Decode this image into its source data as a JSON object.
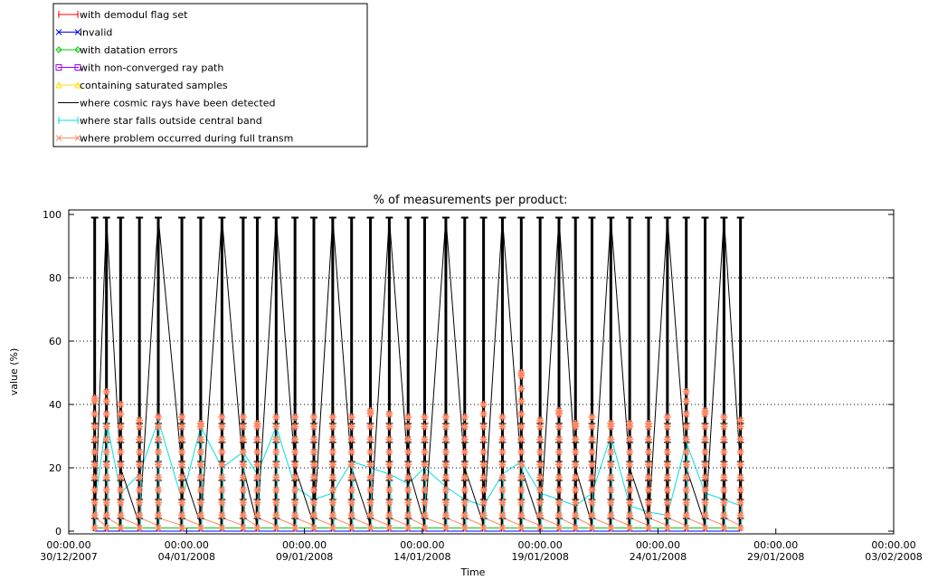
{
  "chart_data": {
    "type": "line",
    "title": "% of measurements per product:",
    "xlabel": "Time",
    "ylabel": "value (%)",
    "ylim": [
      0,
      100
    ],
    "yticks": [
      "0",
      "20",
      "40",
      "60",
      "80",
      "100"
    ],
    "x_range": [
      "30/12/2007",
      "03/02/2008"
    ],
    "xticks": [
      {
        "time": "00:00.00",
        "date": "30/12/2007"
      },
      {
        "time": "00:00.00",
        "date": "04/01/2008"
      },
      {
        "time": "00:00.00",
        "date": "09/01/2008"
      },
      {
        "time": "00:00.00",
        "date": "14/01/2008"
      },
      {
        "time": "00:00.00",
        "date": "19/01/2008"
      },
      {
        "time": "00:00.00",
        "date": "24/01/2008"
      },
      {
        "time": "00:00.00",
        "date": "29/01/2008"
      },
      {
        "time": "00:00.00",
        "date": "03/02/2008"
      }
    ],
    "grid": "horizontal dotted",
    "legend_position": "top-left, outside plot",
    "series": [
      {
        "name": "with demodul flag set",
        "color": "#ff0000",
        "marker": "plus"
      },
      {
        "name": "invalid",
        "color": "#0000ff",
        "marker": "x"
      },
      {
        "name": "with datation errors",
        "color": "#00cc00",
        "marker": "diamond"
      },
      {
        "name": "with non-converged ray path",
        "color": "#aa00ff",
        "marker": "square"
      },
      {
        "name": "containing saturated samples",
        "color": "#ffdd00",
        "marker": "triangle"
      },
      {
        "name": "where cosmic rays have been detected",
        "color": "#000000",
        "marker": "none"
      },
      {
        "name": "where star falls outside central band",
        "color": "#00e0e0",
        "marker": "bar"
      },
      {
        "name": "where problem occurred during full transm",
        "color": "#ff8866",
        "marker": "asterisk"
      }
    ],
    "orbit_days": [
      1.1,
      1.6,
      2.2,
      3.0,
      3.8,
      4.8,
      5.6,
      6.5,
      7.4,
      8.0,
      8.8,
      9.6,
      10.4,
      11.2,
      12.0,
      12.8,
      13.6,
      14.4,
      15.1,
      16.0,
      16.8,
      17.6,
      18.4,
      19.2,
      20.0,
      20.8,
      21.5,
      22.2,
      23.0,
      23.8,
      24.6,
      25.4,
      26.2,
      27.0,
      27.8,
      28.5
    ],
    "cosmic_peak": 99,
    "star_band_values": [
      8,
      35,
      12,
      18,
      35,
      10,
      33,
      20,
      25,
      18,
      33,
      14,
      10,
      12,
      22,
      20,
      18,
      15,
      20,
      14,
      10,
      8,
      18,
      22,
      12,
      10,
      8,
      12,
      30,
      8,
      6,
      5,
      28,
      12,
      10,
      8
    ],
    "full_transm_values": [
      42,
      44,
      40,
      35,
      36,
      36,
      34,
      36,
      36,
      34,
      36,
      36,
      36,
      36,
      36,
      38,
      37,
      36,
      36,
      36,
      36,
      40,
      36,
      50,
      35,
      38,
      34,
      36,
      34,
      34,
      34,
      36,
      44,
      38,
      36,
      35
    ],
    "datation_level": 1,
    "invalid_level": 0
  }
}
